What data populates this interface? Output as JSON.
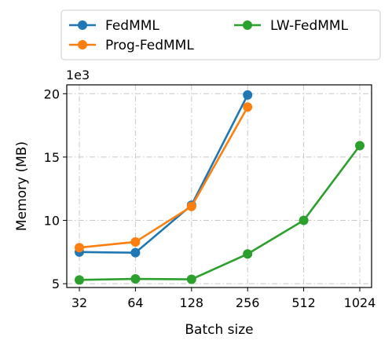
{
  "chart_data": {
    "type": "line",
    "categories": [
      "32",
      "64",
      "128",
      "256",
      "512",
      "1024"
    ],
    "series": [
      {
        "name": "FedMML",
        "color": "#1f77b4",
        "values": [
          7.5,
          7.45,
          11.2,
          19.9,
          null,
          null
        ]
      },
      {
        "name": "Prog-FedMML",
        "color": "#ff7f0e",
        "values": [
          7.85,
          8.3,
          11.1,
          18.95,
          null,
          null
        ]
      },
      {
        "name": "LW-FedMML",
        "color": "#2ca02c",
        "values": [
          5.3,
          5.38,
          5.35,
          7.35,
          10.0,
          15.9
        ]
      }
    ],
    "xlabel": "Batch size",
    "ylabel": "Memory (MB)",
    "y_offset_label": "1e3",
    "yticks": [
      5,
      10,
      15,
      20
    ],
    "ylim": [
      4.7,
      20.7
    ],
    "grid": true,
    "grid_style": "dash-dot",
    "legend_position": "top, outside plot, two columns"
  }
}
